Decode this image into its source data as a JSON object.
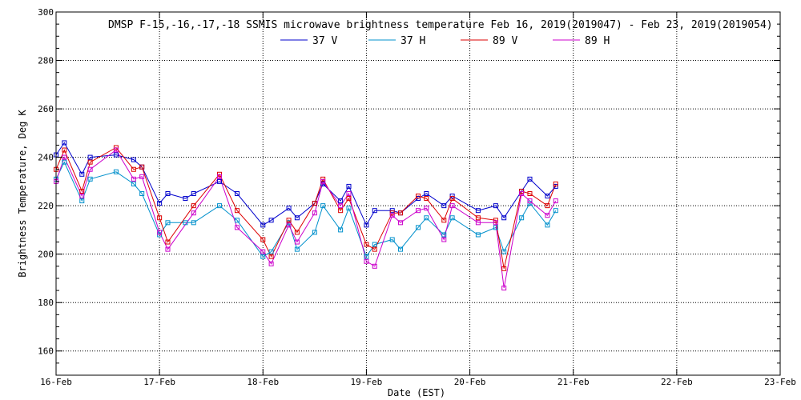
{
  "chart_data": {
    "type": "line",
    "title": "DMSP F-15,-16,-17,-18 SSMIS microwave brightness temperature Feb 16, 2019(2019047) - Feb 23, 2019(2019054)",
    "xlabel": "Date (EST)",
    "ylabel": "Brightness Temperature, Deg K",
    "xlim": [
      0,
      7
    ],
    "ylim": [
      150,
      300
    ],
    "grid": true,
    "legend_position": "top-center",
    "x_ticks": [
      {
        "value": 0,
        "label": "16-Feb"
      },
      {
        "value": 1,
        "label": "17-Feb"
      },
      {
        "value": 2,
        "label": "18-Feb"
      },
      {
        "value": 3,
        "label": "19-Feb"
      },
      {
        "value": 4,
        "label": "20-Feb"
      },
      {
        "value": 5,
        "label": "21-Feb"
      },
      {
        "value": 6,
        "label": "22-Feb"
      },
      {
        "value": 7,
        "label": "23-Feb"
      }
    ],
    "y_ticks": [
      {
        "value": 160,
        "label": "160"
      },
      {
        "value": 180,
        "label": "180"
      },
      {
        "value": 200,
        "label": "200"
      },
      {
        "value": 220,
        "label": "220"
      },
      {
        "value": 240,
        "label": "240"
      },
      {
        "value": 260,
        "label": "260"
      },
      {
        "value": 280,
        "label": "280"
      },
      {
        "value": 300,
        "label": "300"
      }
    ],
    "series": [
      {
        "name": "37 V",
        "color": "#0000cc",
        "points": [
          [
            0.0,
            241
          ],
          [
            0.08,
            246
          ],
          [
            0.25,
            233
          ],
          [
            0.33,
            240
          ],
          [
            0.58,
            241
          ],
          [
            0.75,
            239
          ],
          [
            0.83,
            236
          ],
          [
            1.0,
            221
          ],
          [
            1.08,
            225
          ],
          [
            1.25,
            223
          ],
          [
            1.33,
            225
          ],
          [
            1.58,
            230
          ],
          [
            1.75,
            225
          ],
          [
            2.0,
            212
          ],
          [
            2.08,
            214
          ],
          [
            2.25,
            219
          ],
          [
            2.33,
            215
          ],
          [
            2.5,
            221
          ],
          [
            2.58,
            229
          ],
          [
            2.75,
            222
          ],
          [
            2.83,
            228
          ],
          [
            3.0,
            212
          ],
          [
            3.08,
            218
          ],
          [
            3.25,
            218
          ],
          [
            3.33,
            217
          ],
          [
            3.5,
            223
          ],
          [
            3.58,
            225
          ],
          [
            3.75,
            220
          ],
          [
            3.83,
            224
          ],
          [
            4.08,
            218
          ],
          [
            4.25,
            220
          ],
          [
            4.33,
            215
          ],
          [
            4.5,
            226
          ],
          [
            4.58,
            231
          ],
          [
            4.75,
            224
          ],
          [
            4.83,
            228
          ]
        ]
      },
      {
        "name": "37 H",
        "color": "#0090cc",
        "points": [
          [
            0.0,
            231
          ],
          [
            0.08,
            238
          ],
          [
            0.25,
            222
          ],
          [
            0.33,
            231
          ],
          [
            0.58,
            234
          ],
          [
            0.75,
            229
          ],
          [
            0.83,
            225
          ],
          [
            1.0,
            208
          ],
          [
            1.08,
            213
          ],
          [
            1.25,
            213
          ],
          [
            1.33,
            213
          ],
          [
            1.58,
            220
          ],
          [
            1.75,
            214
          ],
          [
            2.0,
            199
          ],
          [
            2.08,
            201
          ],
          [
            2.25,
            213
          ],
          [
            2.33,
            202
          ],
          [
            2.5,
            209
          ],
          [
            2.58,
            220
          ],
          [
            2.75,
            210
          ],
          [
            2.83,
            219
          ],
          [
            3.0,
            199
          ],
          [
            3.08,
            204
          ],
          [
            3.25,
            206
          ],
          [
            3.33,
            202
          ],
          [
            3.5,
            211
          ],
          [
            3.58,
            215
          ],
          [
            3.75,
            208
          ],
          [
            3.83,
            215
          ],
          [
            4.08,
            208
          ],
          [
            4.25,
            211
          ],
          [
            4.33,
            201
          ],
          [
            4.5,
            215
          ],
          [
            4.58,
            221
          ],
          [
            4.75,
            212
          ],
          [
            4.83,
            218
          ]
        ]
      },
      {
        "name": "89 V",
        "color": "#dd0000",
        "points": [
          [
            0.0,
            235
          ],
          [
            0.08,
            243
          ],
          [
            0.25,
            226
          ],
          [
            0.33,
            238
          ],
          [
            0.58,
            244
          ],
          [
            0.75,
            235
          ],
          [
            0.83,
            236
          ],
          [
            1.0,
            215
          ],
          [
            1.08,
            205
          ],
          [
            1.33,
            220
          ],
          [
            1.58,
            233
          ],
          [
            1.75,
            218
          ],
          [
            2.0,
            206
          ],
          [
            2.08,
            199
          ],
          [
            2.25,
            214
          ],
          [
            2.33,
            209
          ],
          [
            2.5,
            221
          ],
          [
            2.58,
            231
          ],
          [
            2.75,
            218
          ],
          [
            2.83,
            223
          ],
          [
            3.0,
            204
          ],
          [
            3.08,
            202
          ],
          [
            3.25,
            217
          ],
          [
            3.33,
            217
          ],
          [
            3.5,
            224
          ],
          [
            3.58,
            223
          ],
          [
            3.75,
            214
          ],
          [
            3.83,
            223
          ],
          [
            4.08,
            215
          ],
          [
            4.25,
            214
          ],
          [
            4.33,
            194
          ],
          [
            4.5,
            226
          ],
          [
            4.58,
            225
          ],
          [
            4.75,
            220
          ],
          [
            4.83,
            229
          ]
        ]
      },
      {
        "name": "89 H",
        "color": "#cc00cc",
        "points": [
          [
            0.0,
            230
          ],
          [
            0.08,
            240
          ],
          [
            0.25,
            224
          ],
          [
            0.33,
            235
          ],
          [
            0.58,
            243
          ],
          [
            0.75,
            231
          ],
          [
            0.83,
            232
          ],
          [
            1.0,
            209
          ],
          [
            1.08,
            202
          ],
          [
            1.33,
            217
          ],
          [
            1.58,
            232
          ],
          [
            1.75,
            211
          ],
          [
            2.0,
            201
          ],
          [
            2.08,
            196
          ],
          [
            2.25,
            212
          ],
          [
            2.33,
            205
          ],
          [
            2.5,
            217
          ],
          [
            2.58,
            230
          ],
          [
            2.75,
            220
          ],
          [
            2.83,
            225
          ],
          [
            3.0,
            197
          ],
          [
            3.08,
            195
          ],
          [
            3.25,
            216
          ],
          [
            3.33,
            213
          ],
          [
            3.5,
            218
          ],
          [
            3.58,
            219
          ],
          [
            3.75,
            206
          ],
          [
            3.83,
            220
          ],
          [
            4.08,
            213
          ],
          [
            4.25,
            213
          ],
          [
            4.33,
            186
          ],
          [
            4.5,
            225
          ],
          [
            4.58,
            222
          ],
          [
            4.75,
            216
          ],
          [
            4.83,
            222
          ]
        ]
      }
    ]
  }
}
